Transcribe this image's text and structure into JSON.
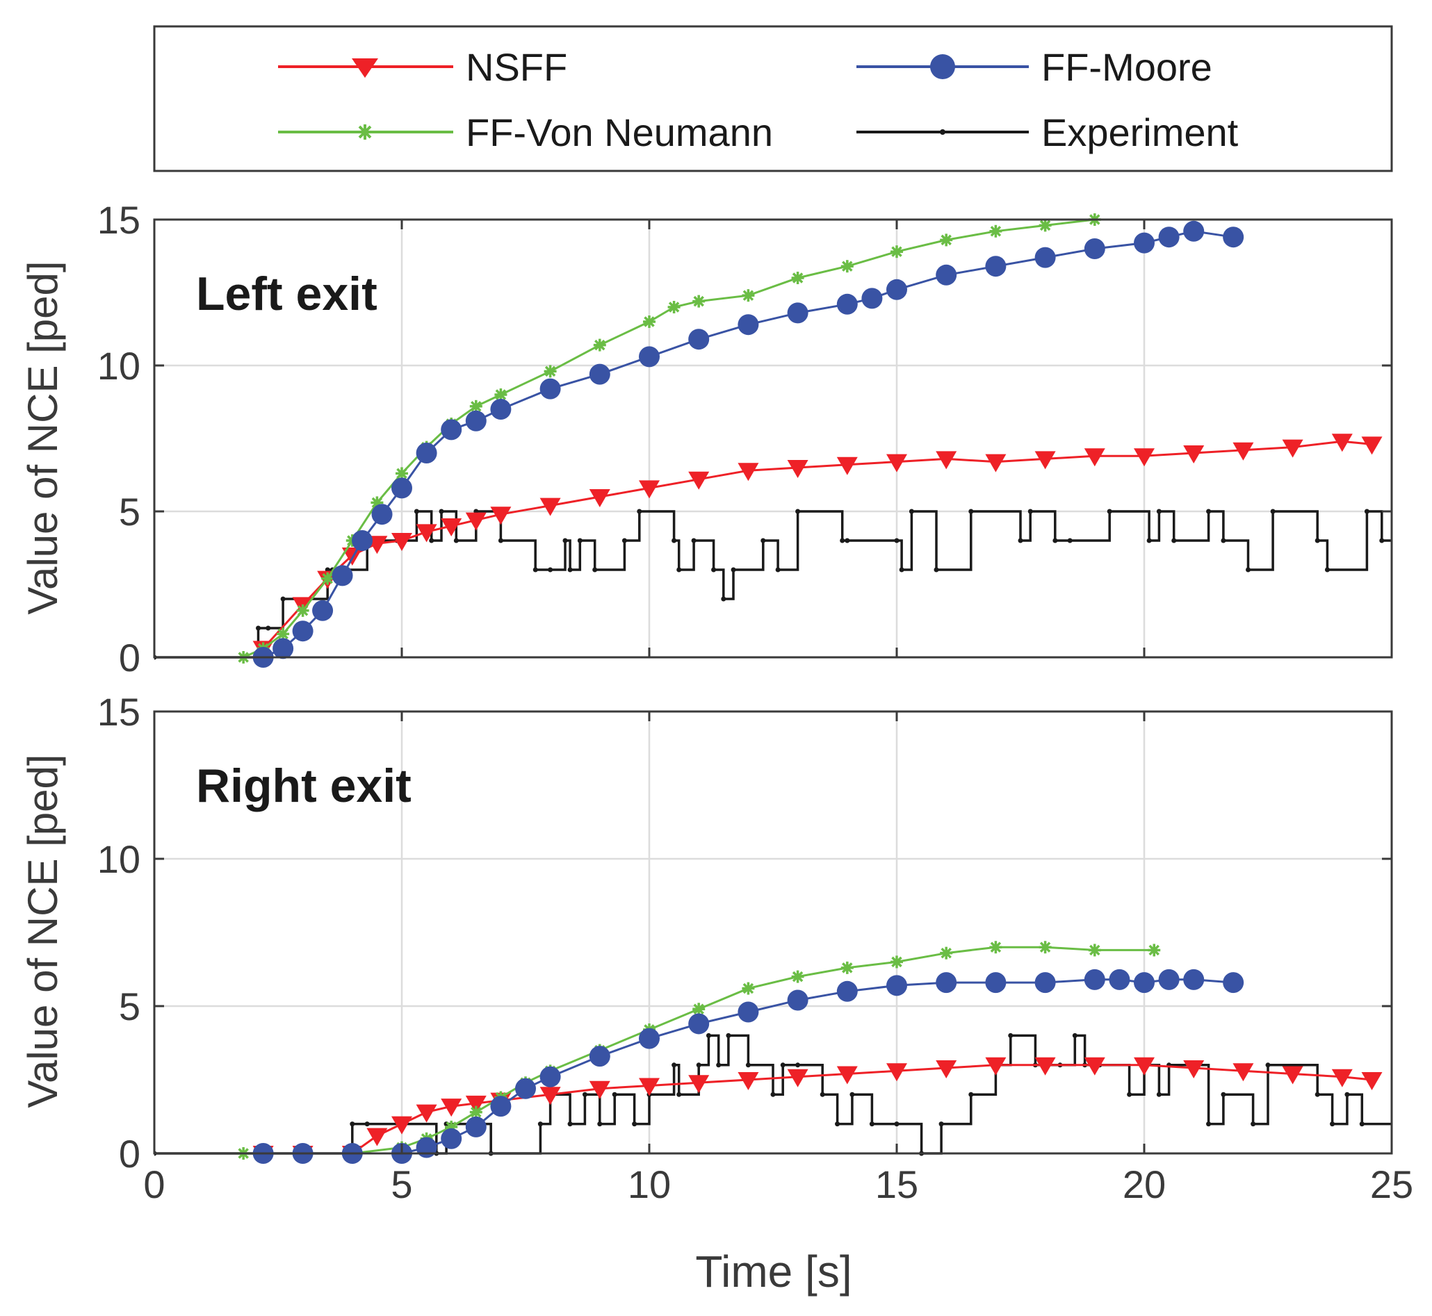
{
  "legend": {
    "entries": [
      {
        "name": "NSFF",
        "color": "#ee2127",
        "marker": "triangle-down"
      },
      {
        "name": "FF-Moore",
        "color": "#3953a4",
        "marker": "circle"
      },
      {
        "name": "FF-Von Neumann",
        "color": "#6abd45",
        "marker": "asterisk"
      },
      {
        "name": "Experiment",
        "color": "#1a1a1a",
        "marker": "dot"
      }
    ]
  },
  "chart_data": [
    {
      "type": "line",
      "title": "Left exit",
      "xlabel": "",
      "ylabel": "Value of NCE [ped]",
      "xlim": [
        0,
        25
      ],
      "ylim": [
        0,
        15
      ],
      "xticks": [
        0,
        5,
        10,
        15,
        20,
        25
      ],
      "yticks": [
        0,
        5,
        10,
        15
      ],
      "xtick_labels_visible": false,
      "grid": true,
      "series": [
        {
          "name": "NSFF",
          "x": [
            2.2,
            3.0,
            3.5,
            4.0,
            4.5,
            5.0,
            5.5,
            6.0,
            6.5,
            7.0,
            8.0,
            9.0,
            10.0,
            11.0,
            12.0,
            13.0,
            14.0,
            15.0,
            16.0,
            17.0,
            18.0,
            19.0,
            20.0,
            21.0,
            22.0,
            23.0,
            24.0,
            24.6
          ],
          "y": [
            0.3,
            1.8,
            2.7,
            3.5,
            3.9,
            4.0,
            4.3,
            4.5,
            4.7,
            4.9,
            5.2,
            5.5,
            5.8,
            6.1,
            6.4,
            6.5,
            6.6,
            6.7,
            6.8,
            6.7,
            6.8,
            6.9,
            6.9,
            7.0,
            7.1,
            7.2,
            7.4,
            7.3
          ]
        },
        {
          "name": "FF-Moore",
          "x": [
            2.2,
            2.6,
            3.0,
            3.4,
            3.8,
            4.2,
            4.6,
            5.0,
            5.5,
            6.0,
            6.5,
            7.0,
            8.0,
            9.0,
            10.0,
            11.0,
            12.0,
            13.0,
            14.0,
            14.5,
            15.0,
            16.0,
            17.0,
            18.0,
            19.0,
            20.0,
            20.5,
            21.0,
            21.8
          ],
          "y": [
            0.0,
            0.3,
            0.9,
            1.6,
            2.8,
            4.0,
            4.9,
            5.8,
            7.0,
            7.8,
            8.1,
            8.5,
            9.2,
            9.7,
            10.3,
            10.9,
            11.4,
            11.8,
            12.1,
            12.3,
            12.6,
            13.1,
            13.4,
            13.7,
            14.0,
            14.2,
            14.4,
            14.6,
            14.4
          ]
        },
        {
          "name": "FF-Von Neumann",
          "x": [
            1.8,
            2.2,
            2.6,
            3.0,
            3.5,
            4.0,
            4.5,
            5.0,
            5.5,
            6.0,
            6.5,
            7.0,
            8.0,
            9.0,
            10.0,
            10.5,
            11.0,
            12.0,
            13.0,
            14.0,
            15.0,
            16.0,
            17.0,
            18.0,
            19.0
          ],
          "y": [
            0.0,
            0.3,
            0.8,
            1.6,
            2.7,
            4.0,
            5.3,
            6.3,
            7.2,
            8.0,
            8.6,
            9.0,
            9.8,
            10.7,
            11.5,
            12.0,
            12.2,
            12.4,
            13.0,
            13.4,
            13.9,
            14.3,
            14.6,
            14.8,
            15.0
          ]
        },
        {
          "name": "Experiment",
          "type": "step",
          "x": [
            0,
            2.1,
            2.3,
            2.6,
            3.5,
            3.6,
            4.3,
            4.9,
            5.3,
            5.6,
            5.8,
            6.1,
            6.5,
            7.0,
            7.7,
            8.0,
            8.3,
            8.4,
            8.6,
            8.9,
            9.5,
            9.8,
            10.5,
            10.6,
            10.9,
            11.3,
            11.5,
            11.7,
            12.3,
            12.6,
            13.0,
            13.9,
            14.0,
            15.0,
            15.1,
            15.3,
            15.8,
            16.5,
            17.5,
            17.7,
            18.2,
            18.5,
            19.3,
            20.1,
            20.3,
            20.6,
            21.3,
            21.6,
            22.1,
            22.6,
            23.5,
            23.7,
            24.5,
            24.8
          ],
          "y": [
            0,
            1,
            1,
            2,
            3,
            3,
            4,
            4,
            5,
            4,
            5,
            4,
            5,
            4,
            3,
            3,
            4,
            3,
            4,
            3,
            4,
            5,
            4,
            3,
            4,
            3,
            2,
            3,
            4,
            3,
            5,
            4,
            4,
            4,
            3,
            5,
            3,
            5,
            4,
            5,
            4,
            4,
            5,
            4,
            5,
            4,
            5,
            4,
            3,
            5,
            4,
            3,
            5,
            4
          ]
        }
      ]
    },
    {
      "type": "line",
      "title": "Right exit",
      "xlabel": "Time [s]",
      "ylabel": "Value of NCE [ped]",
      "xlim": [
        0,
        25
      ],
      "ylim": [
        0,
        15
      ],
      "xticks": [
        0,
        5,
        10,
        15,
        20,
        25
      ],
      "yticks": [
        0,
        5,
        10,
        15
      ],
      "grid": true,
      "series": [
        {
          "name": "NSFF",
          "x": [
            2.2,
            3.0,
            4.0,
            4.5,
            5.0,
            5.5,
            6.0,
            6.5,
            7.0,
            8.0,
            9.0,
            10.0,
            11.0,
            12.0,
            13.0,
            14.0,
            15.0,
            16.0,
            17.0,
            18.0,
            19.0,
            20.0,
            21.0,
            22.0,
            23.0,
            24.0,
            24.6
          ],
          "y": [
            0.0,
            0.0,
            0.0,
            0.6,
            1.0,
            1.4,
            1.6,
            1.7,
            1.8,
            2.0,
            2.2,
            2.3,
            2.4,
            2.5,
            2.6,
            2.7,
            2.8,
            2.9,
            3.0,
            3.0,
            3.0,
            3.0,
            2.9,
            2.8,
            2.7,
            2.6,
            2.5
          ]
        },
        {
          "name": "FF-Moore",
          "x": [
            2.2,
            3.0,
            4.0,
            5.0,
            5.5,
            6.0,
            6.5,
            7.0,
            7.5,
            8.0,
            9.0,
            10.0,
            11.0,
            12.0,
            13.0,
            14.0,
            15.0,
            16.0,
            17.0,
            18.0,
            19.0,
            19.5,
            20.0,
            20.5,
            21.0,
            21.8
          ],
          "y": [
            0.0,
            0.0,
            0.0,
            0.0,
            0.2,
            0.5,
            0.9,
            1.6,
            2.2,
            2.6,
            3.3,
            3.9,
            4.4,
            4.8,
            5.2,
            5.5,
            5.7,
            5.8,
            5.8,
            5.8,
            5.9,
            5.9,
            5.8,
            5.9,
            5.9,
            5.8
          ]
        },
        {
          "name": "FF-Von Neumann",
          "x": [
            1.8,
            3.0,
            4.0,
            5.0,
            5.5,
            6.0,
            6.5,
            7.0,
            7.5,
            8.0,
            9.0,
            10.0,
            11.0,
            12.0,
            13.0,
            14.0,
            15.0,
            16.0,
            17.0,
            18.0,
            19.0,
            20.2
          ],
          "y": [
            0.0,
            0.0,
            0.0,
            0.2,
            0.5,
            0.9,
            1.4,
            1.9,
            2.4,
            2.8,
            3.5,
            4.2,
            4.9,
            5.6,
            6.0,
            6.3,
            6.5,
            6.8,
            7.0,
            7.0,
            6.9,
            6.9
          ]
        },
        {
          "name": "Experiment",
          "type": "step",
          "x": [
            0,
            4.0,
            4.3,
            5.0,
            5.7,
            5.9,
            6.8,
            7.8,
            8.0,
            8.4,
            8.7,
            9.0,
            9.3,
            9.7,
            10.0,
            10.5,
            10.6,
            11.0,
            11.2,
            11.4,
            11.6,
            12.0,
            12.5,
            12.7,
            13.0,
            13.5,
            13.8,
            14.1,
            14.5,
            15.0,
            15.5,
            15.9,
            16.5,
            17.0,
            17.3,
            17.8,
            18.3,
            18.6,
            18.8,
            19.1,
            19.7,
            20.0,
            20.3,
            20.5,
            21.3,
            21.6,
            22.2,
            22.5,
            23.5,
            23.8,
            24.1,
            24.4
          ],
          "y": [
            0,
            1,
            1,
            1,
            0,
            1,
            0,
            1,
            2,
            1,
            2,
            1,
            2,
            1,
            2,
            3,
            2,
            3,
            4,
            3,
            4,
            3,
            2,
            3,
            3,
            2,
            1,
            2,
            1,
            1,
            0,
            1,
            2,
            3,
            4,
            3,
            3,
            4,
            3,
            3,
            2,
            3,
            2,
            3,
            1,
            2,
            1,
            3,
            2,
            1,
            2,
            1
          ]
        }
      ]
    }
  ]
}
